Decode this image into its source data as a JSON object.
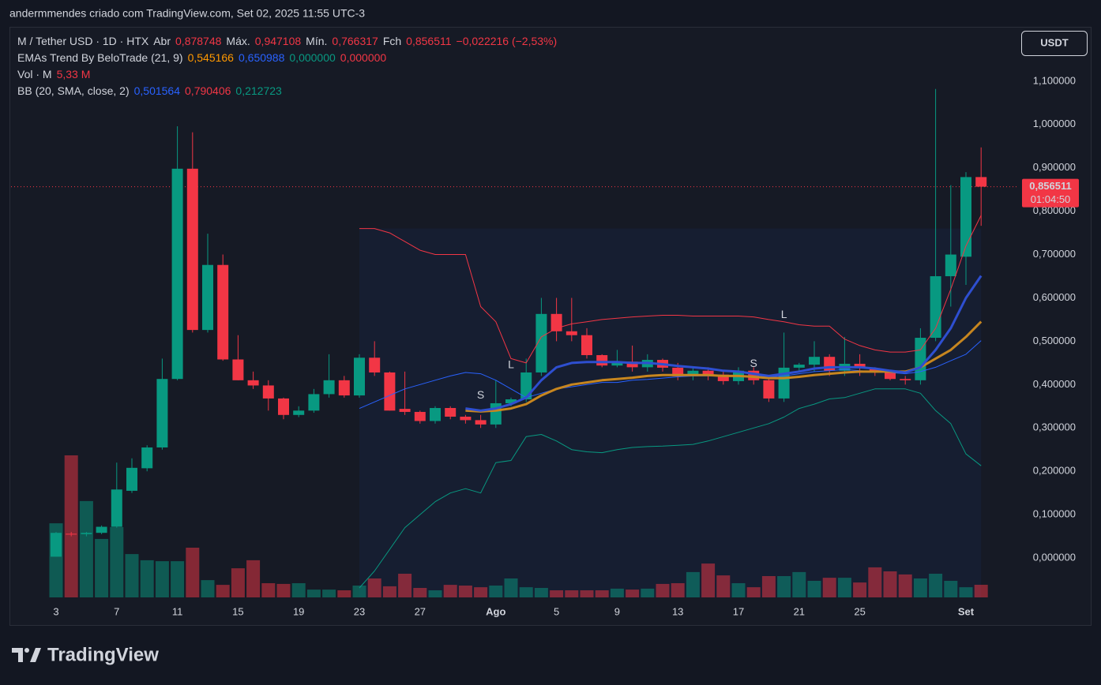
{
  "header": {
    "credit": "andermmendes criado com TradingView.com, Set 02, 2025 11:55 UTC-3",
    "currency": "USDT",
    "logo": "TradingView"
  },
  "legend": [
    [
      {
        "text": "M / Tether USD · 1D · HTX",
        "color": "#d1d4dc"
      },
      {
        "text": "Abr",
        "color": "#d1d4dc"
      },
      {
        "text": "0,878748",
        "color": "#f23645"
      },
      {
        "text": "Máx.",
        "color": "#d1d4dc"
      },
      {
        "text": "0,947108",
        "color": "#f23645"
      },
      {
        "text": "Mín.",
        "color": "#d1d4dc"
      },
      {
        "text": "0,766317",
        "color": "#f23645"
      },
      {
        "text": "Fch",
        "color": "#d1d4dc"
      },
      {
        "text": "0,856511",
        "color": "#f23645"
      },
      {
        "text": "−0,022216 (−2,53%)",
        "color": "#f23645"
      }
    ],
    [
      {
        "text": "EMAs Trend By BeloTrade (21, 9)",
        "color": "#d1d4dc"
      },
      {
        "text": "0,545166",
        "color": "#ff9800"
      },
      {
        "text": "0,650988",
        "color": "#2962ff"
      },
      {
        "text": "0,000000",
        "color": "#089981"
      },
      {
        "text": "0,000000",
        "color": "#f23645"
      }
    ],
    [
      {
        "text": "Vol · M",
        "color": "#d1d4dc"
      },
      {
        "text": "5,33 M",
        "color": "#f23645"
      }
    ],
    [
      {
        "text": "BB (20, SMA, close, 2)",
        "color": "#d1d4dc"
      },
      {
        "text": "0,501564",
        "color": "#2962ff"
      },
      {
        "text": "0,790406",
        "color": "#f23645"
      },
      {
        "text": "0,212723",
        "color": "#089981"
      }
    ]
  ],
  "chart_data": {
    "type": "candlestick",
    "categories": [
      "3",
      null,
      null,
      null,
      "7",
      null,
      null,
      null,
      "11",
      null,
      null,
      null,
      "15",
      null,
      null,
      null,
      "19",
      null,
      null,
      null,
      "23",
      null,
      null,
      null,
      "27",
      null,
      null,
      null,
      null,
      "Ago",
      null,
      null,
      null,
      "5",
      null,
      null,
      null,
      "9",
      null,
      null,
      null,
      "13",
      null,
      null,
      null,
      "17",
      null,
      null,
      null,
      "21",
      null,
      null,
      null,
      "25",
      null,
      null,
      null,
      null,
      null,
      null,
      "Set",
      null
    ],
    "up_color": "#089981",
    "down_color": "#f23645",
    "open": [
      0.003,
      0.056,
      0.055,
      0.058,
      0.072,
      0.155,
      0.207,
      0.255,
      0.413,
      0.898,
      0.526,
      0.676,
      0.458,
      0.41,
      0.398,
      0.368,
      0.33,
      0.34,
      0.378,
      0.41,
      0.375,
      0.462,
      0.428,
      0.344,
      0.337,
      0.316,
      0.346,
      0.326,
      0.318,
      0.308,
      0.357,
      0.366,
      0.428,
      0.563,
      0.523,
      0.514,
      0.468,
      0.444,
      0.453,
      0.44,
      0.457,
      0.439,
      0.419,
      0.432,
      0.423,
      0.408,
      0.432,
      0.41,
      0.368,
      0.439,
      0.446,
      0.464,
      0.432,
      0.448,
      0.438,
      0.428,
      0.413,
      0.41,
      0.508,
      0.65,
      0.695,
      0.878748
    ],
    "high": [
      0.06,
      0.06,
      0.06,
      0.075,
      0.22,
      0.23,
      0.26,
      0.46,
      0.996,
      0.982,
      0.748,
      0.7,
      0.514,
      0.43,
      0.41,
      0.37,
      0.35,
      0.39,
      0.47,
      0.42,
      0.47,
      0.5,
      0.43,
      0.43,
      0.34,
      0.35,
      0.35,
      0.33,
      0.33,
      0.41,
      0.37,
      0.46,
      0.6,
      0.6,
      0.6,
      0.53,
      0.47,
      0.48,
      0.49,
      0.47,
      0.46,
      0.45,
      0.44,
      0.44,
      0.43,
      0.44,
      0.44,
      0.42,
      0.52,
      0.45,
      0.5,
      0.47,
      0.51,
      0.47,
      0.44,
      0.43,
      0.42,
      0.53,
      1.082,
      0.86,
      0.89,
      0.947108
    ],
    "low": [
      0.003,
      0.05,
      0.05,
      0.055,
      0.07,
      0.15,
      0.2,
      0.25,
      0.41,
      0.52,
      0.52,
      0.455,
      0.41,
      0.39,
      0.34,
      0.32,
      0.325,
      0.335,
      0.37,
      0.37,
      0.37,
      0.42,
      0.34,
      0.33,
      0.31,
      0.31,
      0.32,
      0.31,
      0.3,
      0.3,
      0.35,
      0.36,
      0.42,
      0.5,
      0.5,
      0.46,
      0.44,
      0.44,
      0.43,
      0.43,
      0.43,
      0.41,
      0.41,
      0.41,
      0.4,
      0.4,
      0.4,
      0.36,
      0.36,
      0.43,
      0.43,
      0.42,
      0.42,
      0.42,
      0.42,
      0.41,
      0.4,
      0.4,
      0.5,
      0.58,
      0.63,
      0.766317
    ],
    "close": [
      0.058,
      0.054,
      0.058,
      0.072,
      0.158,
      0.208,
      0.255,
      0.413,
      0.898,
      0.526,
      0.676,
      0.458,
      0.41,
      0.398,
      0.368,
      0.33,
      0.34,
      0.378,
      0.41,
      0.375,
      0.462,
      0.428,
      0.34,
      0.337,
      0.316,
      0.346,
      0.326,
      0.318,
      0.308,
      0.357,
      0.366,
      0.428,
      0.563,
      0.523,
      0.514,
      0.468,
      0.444,
      0.453,
      0.44,
      0.457,
      0.439,
      0.419,
      0.432,
      0.423,
      0.408,
      0.432,
      0.41,
      0.368,
      0.439,
      0.446,
      0.464,
      0.432,
      0.448,
      0.438,
      0.428,
      0.413,
      0.41,
      0.508,
      0.65,
      0.7,
      0.8787,
      0.856511
    ],
    "volume": [
      31.3,
      60,
      40.7,
      24.7,
      29.7,
      18.3,
      15.7,
      15.3,
      15.3,
      21,
      7.3,
      5.3,
      12.3,
      15.7,
      6,
      5.7,
      6,
      3.3,
      3.3,
      3,
      5,
      8,
      4.7,
      10,
      4,
      3,
      5.3,
      5,
      4.3,
      5,
      8,
      4.3,
      4,
      3,
      3,
      3,
      3,
      3.7,
      3.3,
      3.7,
      5.7,
      6,
      10.7,
      14.3,
      9.3,
      6,
      4.3,
      9,
      9,
      10.7,
      7,
      8.3,
      8.3,
      6.3,
      12.7,
      11,
      9.7,
      8,
      10,
      7,
      4.3,
      5.33
    ],
    "series": [
      {
        "color": "#f23645",
        "width": 1,
        "values": [
          null,
          null,
          null,
          null,
          null,
          null,
          null,
          null,
          null,
          null,
          null,
          null,
          null,
          null,
          null,
          null,
          null,
          null,
          null,
          null,
          0.76,
          0.76,
          0.75,
          0.73,
          0.71,
          0.7,
          0.7,
          0.7,
          0.58,
          0.545,
          0.46,
          0.45,
          0.51,
          0.53,
          0.54,
          0.545,
          0.55,
          0.553,
          0.556,
          0.558,
          0.56,
          0.56,
          0.558,
          0.558,
          0.558,
          0.558,
          0.556,
          0.55,
          0.545,
          0.538,
          0.535,
          0.535,
          0.505,
          0.49,
          0.48,
          0.475,
          0.475,
          0.48,
          0.53,
          0.62,
          0.72,
          0.790406
        ]
      },
      {
        "color": "#089981",
        "width": 1,
        "values": [
          null,
          null,
          null,
          null,
          null,
          null,
          null,
          null,
          null,
          null,
          null,
          null,
          null,
          null,
          null,
          null,
          null,
          null,
          null,
          null,
          -0.069,
          -0.03,
          0.02,
          0.07,
          0.1,
          0.13,
          0.15,
          0.16,
          0.15,
          0.22,
          0.225,
          0.28,
          0.285,
          0.27,
          0.25,
          0.245,
          0.243,
          0.25,
          0.255,
          0.257,
          0.258,
          0.26,
          0.262,
          0.27,
          0.28,
          0.29,
          0.3,
          0.31,
          0.325,
          0.345,
          0.355,
          0.367,
          0.37,
          0.38,
          0.39,
          0.39,
          0.39,
          0.38,
          0.34,
          0.31,
          0.24,
          0.212723
        ]
      },
      {
        "color": "#2962ff",
        "width": 1,
        "values": [
          null,
          null,
          null,
          null,
          null,
          null,
          null,
          null,
          null,
          null,
          null,
          null,
          null,
          null,
          null,
          null,
          null,
          null,
          null,
          null,
          0.345,
          0.36,
          0.375,
          0.39,
          0.4,
          0.41,
          0.42,
          0.428,
          0.425,
          0.41,
          0.39,
          0.37,
          0.38,
          0.39,
          0.395,
          0.4,
          0.405,
          0.405,
          0.41,
          0.412,
          0.415,
          0.418,
          0.42,
          0.42,
          0.42,
          0.42,
          0.42,
          0.418,
          0.42,
          0.425,
          0.43,
          0.432,
          0.435,
          0.432,
          0.43,
          0.428,
          0.425,
          0.43,
          0.44,
          0.455,
          0.47,
          0.501564
        ]
      },
      {
        "color": "#c7861f",
        "width": 3,
        "values": [
          null,
          null,
          null,
          null,
          null,
          null,
          null,
          null,
          null,
          null,
          null,
          null,
          null,
          null,
          null,
          null,
          null,
          null,
          null,
          null,
          null,
          null,
          null,
          null,
          null,
          null,
          null,
          0.34,
          0.338,
          0.34,
          0.345,
          0.355,
          0.375,
          0.39,
          0.4,
          0.405,
          0.41,
          0.413,
          0.416,
          0.42,
          0.422,
          0.422,
          0.422,
          0.422,
          0.42,
          0.42,
          0.418,
          0.415,
          0.415,
          0.418,
          0.422,
          0.425,
          0.428,
          0.43,
          0.43,
          0.43,
          0.43,
          0.44,
          0.46,
          0.48,
          0.51,
          0.545166
        ]
      },
      {
        "color": "#2e4fd0",
        "width": 3,
        "values": [
          null,
          null,
          null,
          null,
          null,
          null,
          null,
          null,
          null,
          null,
          null,
          null,
          null,
          null,
          null,
          null,
          null,
          null,
          null,
          null,
          null,
          null,
          null,
          null,
          null,
          null,
          null,
          0.345,
          0.34,
          0.345,
          0.355,
          0.37,
          0.41,
          0.44,
          0.45,
          0.452,
          0.452,
          0.452,
          0.45,
          0.45,
          0.447,
          0.443,
          0.44,
          0.437,
          0.432,
          0.43,
          0.425,
          0.42,
          0.425,
          0.43,
          0.437,
          0.44,
          0.44,
          0.44,
          0.437,
          0.432,
          0.428,
          0.44,
          0.48,
          0.53,
          0.6,
          0.650988
        ]
      }
    ],
    "annotations": [
      {
        "text": "S",
        "index": 28,
        "y": 0.375,
        "color": "#f23645"
      },
      {
        "text": "L",
        "index": 30,
        "y": 0.445,
        "color": "#089981"
      },
      {
        "text": "S",
        "index": 46,
        "y": 0.447,
        "color": "#f23645"
      },
      {
        "text": "L",
        "index": 48,
        "y": 0.56,
        "color": "#089981"
      }
    ],
    "price_line": {
      "value": 0.856511,
      "label": "0,856511",
      "countdown": "01:04:50",
      "color": "#f23645"
    },
    "ylim": [
      -0.1,
      1.218
    ],
    "yticks": [
      {
        "value": 0,
        "label": "0,000000"
      },
      {
        "value": 0.1,
        "label": "0,100000"
      },
      {
        "value": 0.2,
        "label": "0,200000"
      },
      {
        "value": 0.3,
        "label": "0,300000"
      },
      {
        "value": 0.4,
        "label": "0,400000"
      },
      {
        "value": 0.5,
        "label": "0,500000"
      },
      {
        "value": 0.6,
        "label": "0,600000"
      },
      {
        "value": 0.7,
        "label": "0,700000"
      },
      {
        "value": 0.8,
        "label": "0,800000"
      },
      {
        "value": 0.9,
        "label": "0,900000"
      },
      {
        "value": 1.0,
        "label": "1,000000"
      },
      {
        "value": 1.1,
        "label": "1,100000"
      }
    ],
    "grid": false
  }
}
